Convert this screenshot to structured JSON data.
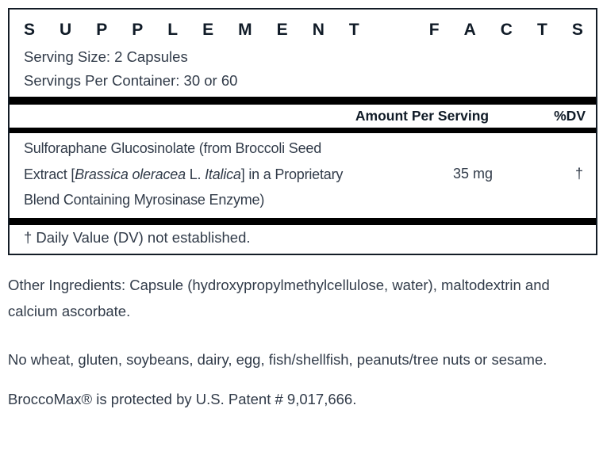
{
  "panel": {
    "title": "SUPPLEMENT FACTS",
    "serving_size": "Serving Size: 2 Capsules",
    "servings_per_container": "Servings Per Container: 30 or 60",
    "header": {
      "amount": "Amount Per Serving",
      "dv": "%DV"
    },
    "rows": [
      {
        "name_segments": [
          {
            "text": "Sulforaphane Glucosinolate (from Broccoli Seed Extract [",
            "italic": false
          },
          {
            "text": "Brassica oleracea",
            "italic": true
          },
          {
            "text": " L. ",
            "italic": false
          },
          {
            "text": "Italica",
            "italic": true
          },
          {
            "text": "] in a Proprietary Blend Containing Myrosinase Enzyme)",
            "italic": false
          }
        ],
        "amount": "35 mg",
        "dv": "†"
      }
    ],
    "footnote": "† Daily Value (DV) not established."
  },
  "notes": {
    "other_ingredients": "Other Ingredients: Capsule (hydroxypropylmethylcellulose, water), maltodextrin and calcium ascorbate.",
    "allergens": "No wheat, gluten, soybeans, dairy, egg, fish/shellfish, peanuts/tree nuts or sesame.",
    "patent": "BroccoMax® is protected by U.S. Patent # 9,017,666."
  },
  "colors": {
    "heading": "#101b27",
    "text": "#313b49",
    "bar": "#000000",
    "border": "#131c26",
    "background": "#ffffff"
  }
}
